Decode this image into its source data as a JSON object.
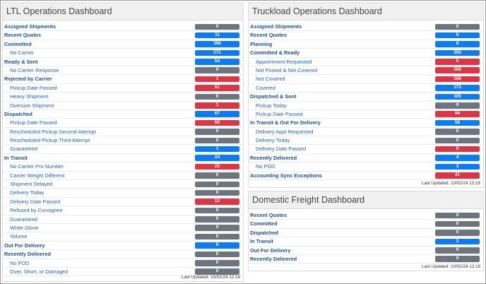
{
  "panels": [
    {
      "title": "LTL Operations Dashboard",
      "footer": "Last Updated: 10/02/24 12:18",
      "rows": [
        {
          "label": "Assigned Shipments",
          "count": "0",
          "color": "#6c757d",
          "indent": false
        },
        {
          "label": "Recent Quotes",
          "count": "11",
          "color": "#0d7bf2",
          "indent": false
        },
        {
          "label": "Committed",
          "count": "396",
          "color": "#0d7bf2",
          "indent": false
        },
        {
          "label": "No Carrier",
          "count": "171",
          "color": "#0d7bf2",
          "indent": true
        },
        {
          "label": "Ready & Sent",
          "count": "54",
          "color": "#0d7bf2",
          "indent": false
        },
        {
          "label": "No Carrier Response",
          "count": "0",
          "color": "#6c757d",
          "indent": true
        },
        {
          "label": "Rejected by Carrier",
          "count": "1",
          "color": "#dc3545",
          "indent": false
        },
        {
          "label": "Pickup Date Passed",
          "count": "51",
          "color": "#dc3545",
          "indent": true
        },
        {
          "label": "Heavy Shipment",
          "count": "0",
          "color": "#6c757d",
          "indent": true
        },
        {
          "label": "Oversize Shipment",
          "count": "1",
          "color": "#dc3545",
          "indent": true
        },
        {
          "label": "Dispatched",
          "count": "67",
          "color": "#0d7bf2",
          "indent": false
        },
        {
          "label": "Pickup Date Passed",
          "count": "68",
          "color": "#dc3545",
          "indent": true
        },
        {
          "label": "Rescheduled Pickup Second Attempt",
          "count": "0",
          "color": "#6c757d",
          "indent": true
        },
        {
          "label": "Rescheduled Pickup Third Attempt",
          "count": "0",
          "color": "#6c757d",
          "indent": true
        },
        {
          "label": "Guaranteed",
          "count": "1",
          "color": "#0d7bf2",
          "indent": true
        },
        {
          "label": "In Transit",
          "count": "24",
          "color": "#0d7bf2",
          "indent": false
        },
        {
          "label": "No Carrier Pro Number",
          "count": "25",
          "color": "#dc3545",
          "indent": true
        },
        {
          "label": "Carrier Weight Different",
          "count": "0",
          "color": "#6c757d",
          "indent": true
        },
        {
          "label": "Shipment Delayed",
          "count": "0",
          "color": "#6c757d",
          "indent": true
        },
        {
          "label": "Delivery Today",
          "count": "0",
          "color": "#6c757d",
          "indent": true
        },
        {
          "label": "Delivery Date Passed",
          "count": "12",
          "color": "#dc3545",
          "indent": true
        },
        {
          "label": "Refused by Consignee",
          "count": "0",
          "color": "#6c757d",
          "indent": true
        },
        {
          "label": "Guaranteed",
          "count": "0",
          "color": "#6c757d",
          "indent": true
        },
        {
          "label": "White Glove",
          "count": "0",
          "color": "#6c757d",
          "indent": true
        },
        {
          "label": "Volume",
          "count": "0",
          "color": "#6c757d",
          "indent": true
        },
        {
          "label": "Out For Delivery",
          "count": "6",
          "color": "#0d7bf2",
          "indent": false
        },
        {
          "label": "Recently Delivered",
          "count": "0",
          "color": "#6c757d",
          "indent": false
        },
        {
          "label": "No POD",
          "count": "0",
          "color": "#6c757d",
          "indent": true
        },
        {
          "label": "Over, Short, or Damaged",
          "count": "0",
          "color": "#6c757d",
          "indent": true
        }
      ]
    },
    {
      "title": "Truckload Operations Dashboard",
      "footer": "Last Updated: 10/02/24 12:18",
      "rows": [
        {
          "label": "Assigned Shipments",
          "count": "0",
          "color": "#6c757d",
          "indent": false
        },
        {
          "label": "Recent Quotes",
          "count": "9",
          "color": "#0d7bf2",
          "indent": false
        },
        {
          "label": "Planning",
          "count": "8",
          "color": "#0d7bf2",
          "indent": false
        },
        {
          "label": "Committed & Ready",
          "count": "350",
          "color": "#0d7bf2",
          "indent": false
        },
        {
          "label": "Appointment Requested",
          "count": "5",
          "color": "#dc3545",
          "indent": true
        },
        {
          "label": "Not Posted & Not Covered",
          "count": "166",
          "color": "#dc3545",
          "indent": true
        },
        {
          "label": "Not Covered",
          "count": "166",
          "color": "#dc3545",
          "indent": true
        },
        {
          "label": "Covered",
          "count": "173",
          "color": "#0d7bf2",
          "indent": true
        },
        {
          "label": "Dispatched & Sent",
          "count": "105",
          "color": "#0d7bf2",
          "indent": false
        },
        {
          "label": "Pickup Today",
          "count": "0",
          "color": "#6c757d",
          "indent": true
        },
        {
          "label": "Pickup Date Passed",
          "count": "94",
          "color": "#dc3545",
          "indent": true
        },
        {
          "label": "In Transit & Out For Delivery",
          "count": "56",
          "color": "#0d7bf2",
          "indent": false
        },
        {
          "label": "Delivery Appt Requested",
          "count": "0",
          "color": "#6c757d",
          "indent": true
        },
        {
          "label": "Delivery Today",
          "count": "0",
          "color": "#6c757d",
          "indent": true
        },
        {
          "label": "Delivery Date Passed",
          "count": "0",
          "color": "#dc3545",
          "indent": true
        },
        {
          "label": "Recently Delivered",
          "count": "4",
          "color": "#0d7bf2",
          "indent": false
        },
        {
          "label": "No POD",
          "count": "3",
          "color": "#0d7bf2",
          "indent": true
        },
        {
          "label": "Accounting Sync Exceptions",
          "count": "41",
          "color": "#dc3545",
          "indent": false
        }
      ]
    },
    {
      "title": "Domestic Freight Dashboard",
      "footer": "Last Updated: 10/02/24 12:18",
      "rows": [
        {
          "label": "Recent Quotes",
          "count": "0",
          "color": "#6c757d",
          "indent": false
        },
        {
          "label": "Committed",
          "count": "0",
          "color": "#6c757d",
          "indent": false
        },
        {
          "label": "Dispatched",
          "count": "0",
          "color": "#6c757d",
          "indent": false
        },
        {
          "label": "In Transit",
          "count": "2",
          "color": "#0d7bf2",
          "indent": false
        },
        {
          "label": "Out For Delivery",
          "count": "0",
          "color": "#6c757d",
          "indent": false
        },
        {
          "label": "Recently Delivered",
          "count": "0",
          "color": "#6c757d",
          "indent": false
        }
      ]
    }
  ]
}
